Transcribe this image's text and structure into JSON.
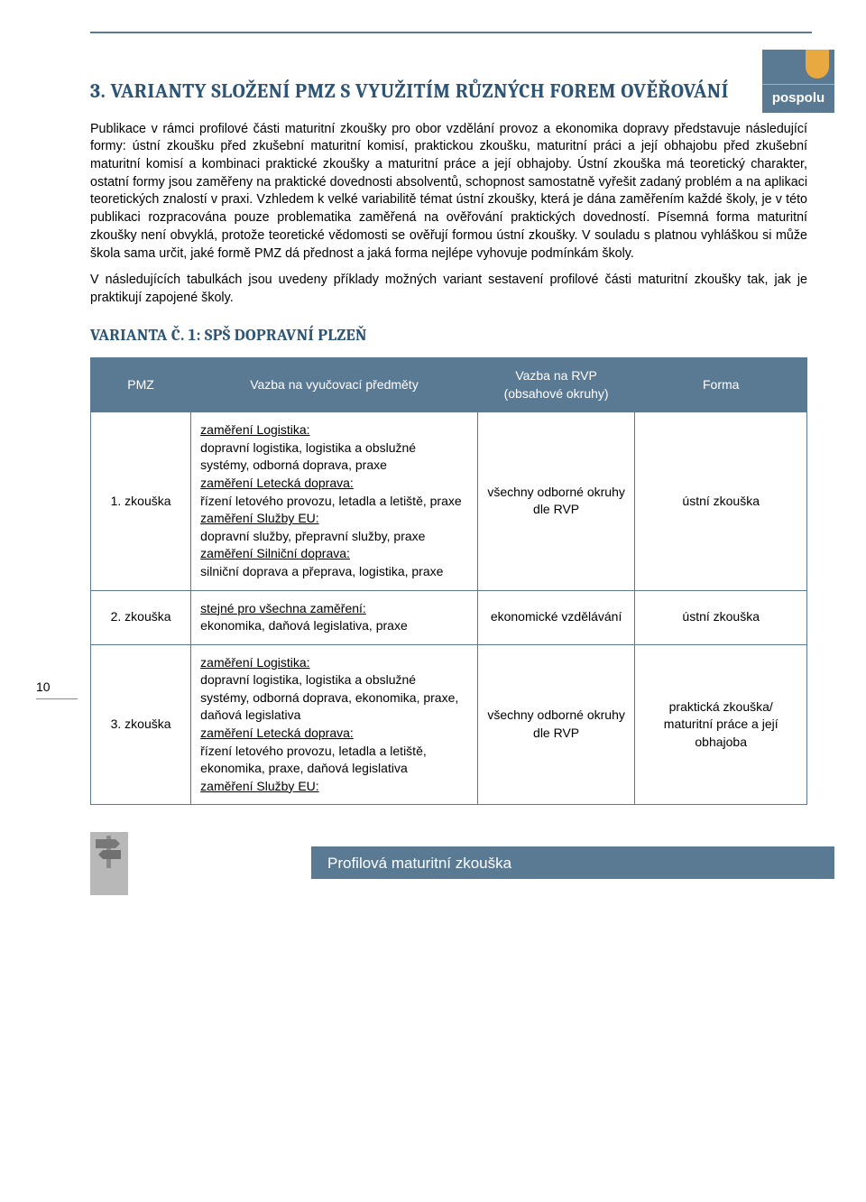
{
  "colors": {
    "brand_blue": "#5a7a94",
    "heading_blue": "#2d5576",
    "accent_orange": "#e8a940",
    "text": "#000000",
    "white": "#ffffff",
    "footer_gray": "#b8b8b8"
  },
  "logo": {
    "label": "pospolu"
  },
  "page_number": "10",
  "heading": "3. VARIANTY SLOŽENÍ PMZ S VYUŽITÍM RŮZNÝCH FOREM OVĚŘOVÁNÍ",
  "paragraphs": {
    "p1": "Publikace v rámci profilové části maturitní zkoušky pro obor vzdělání provoz a ekonomika dopravy představuje následující formy: ústní zkoušku před zkušební maturitní komisí, praktickou zkoušku, maturitní práci a její obhajobu před zkušební maturitní komisí a kombinaci praktické zkoušky a maturitní práce a její obhajoby. Ústní zkouška má teoretický charakter, ostatní formy jsou zaměřeny na praktické dovednosti absolventů, schopnost samostatně vyřešit zadaný problém a na aplikaci teoretických znalostí v praxi. Vzhledem k velké variabilitě témat ústní zkoušky, která je dána zaměřením každé školy, je v této publikaci rozpracována pouze problematika zaměřená na ověřování praktických dovedností. Písemná forma maturitní zkoušky není obvyklá, protože teoretické vědomosti se ověřují formou ústní zkoušky. V souladu s platnou vyhláškou si může škola sama určit, jaké formě PMZ dá přednost a jaká forma nejlépe vyhovuje podmínkám školy.",
    "p2": "V následujících tabulkách jsou uvedeny příklady možných variant sestavení profilové části maturitní zkoušky tak, jak je praktikují zapojené školy."
  },
  "subheading": {
    "lead": "VARIANTA Č. 1: SPŠ ",
    "tail": "DOPRAVNÍ PLZEŇ"
  },
  "table": {
    "headers": {
      "c1": "PMZ",
      "c2": "Vazba na vyučovací předměty",
      "c3": "Vazba na RVP (obsahové okruhy)",
      "c4": "Forma"
    },
    "rows": [
      {
        "pmz": "1. zkouška",
        "subjects": [
          {
            "u": "zaměření Logistika:",
            "t": "dopravní logistika, logistika a obslužné systémy, odborná doprava, praxe"
          },
          {
            "u": "zaměření Letecká doprava:",
            "t": "řízení letového provozu, letadla a letiště, praxe"
          },
          {
            "u": "zaměření Služby EU:",
            "t": "dopravní služby, přepravní služby, praxe"
          },
          {
            "u": "zaměření Silniční doprava:",
            "t": "silniční doprava a přeprava, logistika, praxe"
          }
        ],
        "rvp": "všechny odborné okruhy dle RVP",
        "forma": "ústní zkouška"
      },
      {
        "pmz": "2. zkouška",
        "subjects": [
          {
            "u": "stejné pro všechna zaměření:",
            "t": "ekonomika, daňová legislativa, praxe"
          }
        ],
        "rvp": "ekonomické vzdělávání",
        "forma": "ústní zkouška"
      },
      {
        "pmz": "3. zkouška",
        "subjects": [
          {
            "u": "zaměření Logistika:",
            "t": "dopravní logistika, logistika a obslužné systémy, odborná doprava, ekonomika, praxe, daňová legislativa"
          },
          {
            "u": "zaměření Letecká doprava:",
            "t": "řízení letového provozu, letadla a letiště, ekonomika, praxe, daňová legislativa"
          },
          {
            "u": "zaměření Služby EU:",
            "t": ""
          }
        ],
        "rvp": "všechny odborné okruhy dle RVP",
        "forma": "praktická zkouška/ maturitní práce a její obhajoba"
      }
    ]
  },
  "footer": {
    "title": "Profilová maturitní zkouška"
  }
}
